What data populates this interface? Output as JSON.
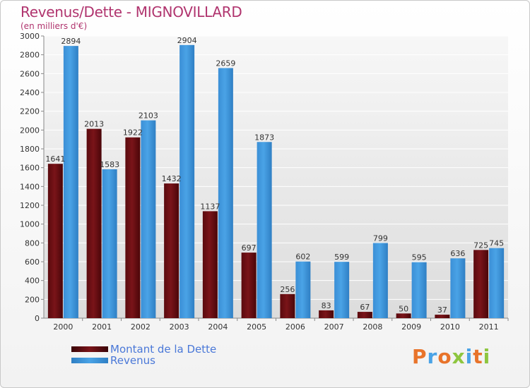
{
  "chart_title": "Revenus/Dette - MIGNOVILLARD",
  "chart_subtitle": "(en milliers d'€)",
  "brand": "Proxiti",
  "colors": {
    "dette": "#7a1419",
    "revenus": "#4aa3e6",
    "title": "#b0346e",
    "legend_text": "#4a78d8"
  },
  "legend": [
    {
      "label": "Montant de la Dette",
      "color": "#7a1419"
    },
    {
      "label": "Revenus",
      "color": "#4aa3e6"
    }
  ],
  "chart_data": {
    "type": "bar",
    "title": "Revenus/Dette - MIGNOVILLARD",
    "subtitle": "(en milliers d'€)",
    "categories": [
      "2000",
      "2001",
      "2002",
      "2003",
      "2004",
      "2005",
      "2006",
      "2007",
      "2008",
      "2009",
      "2010",
      "2011"
    ],
    "series": [
      {
        "name": "Montant de la Dette",
        "values": [
          1641,
          2013,
          1922,
          1432,
          1137,
          697,
          256,
          83,
          67,
          50,
          37,
          725
        ]
      },
      {
        "name": "Revenus",
        "values": [
          2894,
          1583,
          2103,
          2904,
          2659,
          1873,
          602,
          599,
          799,
          595,
          636,
          745
        ]
      }
    ],
    "ylim": [
      0,
      3000
    ],
    "yticks": [
      0,
      200,
      400,
      600,
      800,
      1000,
      1200,
      1400,
      1600,
      1800,
      2000,
      2200,
      2400,
      2600,
      2800,
      3000
    ],
    "grid": true,
    "legend_position": "bottom-left"
  }
}
